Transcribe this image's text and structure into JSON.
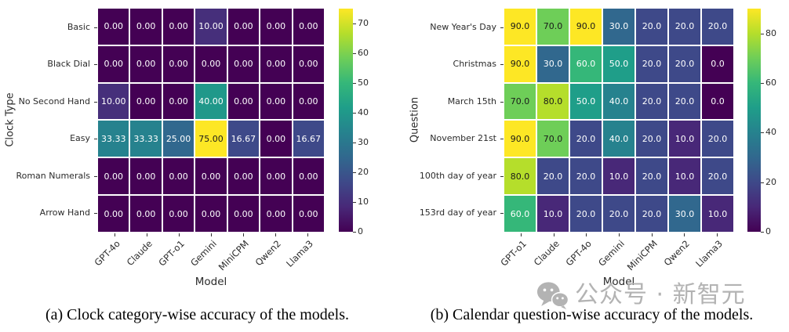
{
  "watermark": {
    "icon": "wechat-icon",
    "text": "公众号 · 新智元",
    "color": "#b3b3b3"
  },
  "theme": {
    "background": "#ffffff",
    "cell_text_light": "#ffffff",
    "cell_text_dark": "#1a1a1a",
    "axis_text": "#2b2b2b",
    "caption_text": "#000000",
    "colormap_anchors": [
      "#440154",
      "#482878",
      "#3e4989",
      "#31688e",
      "#26828e",
      "#1f9e89",
      "#35b779",
      "#6ece58",
      "#b5de2b",
      "#fde725"
    ]
  },
  "chart_data": [
    {
      "type": "heatmap",
      "caption": "(a) Clock category-wise accuracy of the models.",
      "xlabel": "Model",
      "ylabel": "Clock Type",
      "x_categories": [
        "GPT-4o",
        "Claude",
        "GPT-o1",
        "Gemini",
        "MiniCPM",
        "Qwen2",
        "Llama3"
      ],
      "y_categories": [
        "Basic",
        "Black Dial",
        "No Second Hand",
        "Easy",
        "Roman Numerals",
        "Arrow Hand"
      ],
      "values": [
        [
          0,
          0,
          0,
          10,
          0,
          0,
          0
        ],
        [
          0,
          0,
          0,
          0,
          0,
          0,
          0
        ],
        [
          10,
          0,
          0,
          40,
          0,
          0,
          0
        ],
        [
          33.33,
          33.33,
          25,
          75,
          16.67,
          0,
          16.67
        ],
        [
          0,
          0,
          0,
          0,
          0,
          0,
          0
        ],
        [
          0,
          0,
          0,
          0,
          0,
          0,
          0
        ]
      ],
      "value_decimals": 2,
      "colormap": "viridis",
      "colorbar": {
        "min": 0,
        "max": 75,
        "ticks": [
          0,
          10,
          20,
          30,
          40,
          50,
          60,
          70
        ],
        "position": "right"
      },
      "grid": false
    },
    {
      "type": "heatmap",
      "caption": "(b) Calendar question-wise accuracy of the models.",
      "xlabel": "Model",
      "ylabel": "Question",
      "x_categories": [
        "GPT-o1",
        "Claude",
        "GPT-4o",
        "Gemini",
        "MiniCPM",
        "Qwen2",
        "Llama3"
      ],
      "y_categories": [
        "New Year's Day",
        "Christmas",
        "March 15th",
        "November 21st",
        "100th day of year",
        "153rd day of year"
      ],
      "values": [
        [
          90,
          70,
          90,
          30,
          20,
          20,
          20
        ],
        [
          90,
          30,
          60,
          50,
          20,
          20,
          0
        ],
        [
          70,
          80,
          50,
          40,
          20,
          20,
          0
        ],
        [
          90,
          70,
          20,
          40,
          20,
          10,
          20
        ],
        [
          80,
          20,
          20,
          10,
          20,
          10,
          20
        ],
        [
          60,
          10,
          20,
          20,
          20,
          30,
          10
        ]
      ],
      "value_decimals": 1,
      "colormap": "viridis",
      "colorbar": {
        "min": 0,
        "max": 90,
        "ticks": [
          0,
          20,
          40,
          60,
          80
        ],
        "position": "right"
      },
      "grid": false
    }
  ]
}
